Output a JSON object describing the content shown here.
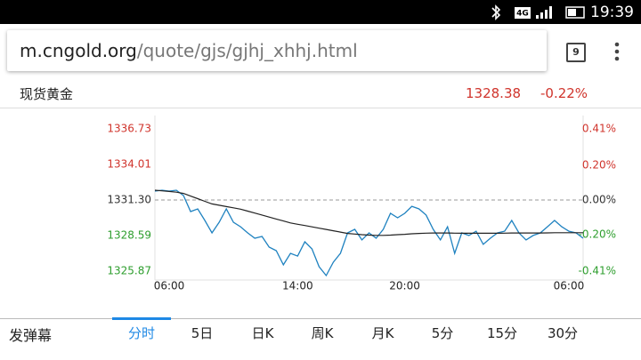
{
  "status_bar": {
    "network": "4G",
    "time": "19:39"
  },
  "browser": {
    "url_domain": "m.cngold.org",
    "url_path": "/quote/gjs/gjhj_xhhj.html",
    "tab_count": "9"
  },
  "quote": {
    "name": "现货黄金",
    "price": "1328.38",
    "change": "-0.22%"
  },
  "chart_data": {
    "type": "line",
    "categories": [
      null,
      null,
      "06:00",
      null,
      null,
      null,
      null,
      null,
      null,
      null,
      null,
      null,
      null,
      null,
      null,
      null,
      null,
      null,
      null,
      null,
      "14:00",
      null,
      null,
      null,
      null,
      null,
      null,
      null,
      null,
      null,
      null,
      null,
      null,
      null,
      null,
      "20:00",
      null,
      null,
      null,
      null,
      null,
      null,
      null,
      null,
      null,
      null,
      null,
      null,
      null,
      null,
      null,
      null,
      null,
      null,
      null,
      null,
      null,
      null,
      "06:00",
      null,
      null
    ],
    "series": [
      {
        "color": "#1f82c0",
        "values": [
          1331.98,
          1332.05,
          1331.98,
          1332.05,
          1331.64,
          1330.42,
          1330.62,
          1329.74,
          1328.79,
          1329.6,
          1330.62,
          1329.6,
          1329.26,
          1328.79,
          1328.38,
          1328.52,
          1327.7,
          1327.43,
          1326.35,
          1327.23,
          1327.02,
          1328.11,
          1327.57,
          1326.21,
          1325.53,
          1326.55,
          1327.23,
          1328.79,
          1329.06,
          1328.25,
          1328.79,
          1328.38,
          1329.06,
          1330.28,
          1329.94,
          1330.28,
          1330.82,
          1330.62,
          1330.15,
          1329.06,
          1328.25,
          1329.26,
          1327.23,
          1328.79,
          1328.59,
          1328.92,
          1327.91,
          1328.38,
          1328.79,
          1328.92,
          1329.74,
          1328.79,
          1328.25,
          1328.59,
          1328.79,
          1329.26,
          1329.74,
          1329.26,
          1328.92,
          1328.79,
          1328.38
        ]
      },
      {
        "color": "#222222",
        "values": [
          1332.05,
          1332.0,
          1331.95,
          1331.9,
          1331.8,
          1331.6,
          1331.4,
          1331.2,
          1331.0,
          1330.9,
          1330.8,
          1330.7,
          1330.6,
          1330.45,
          1330.3,
          1330.15,
          1330.0,
          1329.85,
          1329.7,
          1329.55,
          1329.45,
          1329.35,
          1329.25,
          1329.15,
          1329.05,
          1328.95,
          1328.85,
          1328.75,
          1328.7,
          1328.65,
          1328.62,
          1328.6,
          1328.6,
          1328.62,
          1328.65,
          1328.68,
          1328.72,
          1328.75,
          1328.77,
          1328.78,
          1328.78,
          1328.78,
          1328.77,
          1328.76,
          1328.76,
          1328.76,
          1328.76,
          1328.76,
          1328.76,
          1328.77,
          1328.78,
          1328.78,
          1328.78,
          1328.78,
          1328.78,
          1328.79,
          1328.8,
          1328.8,
          1328.8,
          1328.8,
          1328.8
        ]
      }
    ],
    "ylim": [
      1325.87,
      1336.73
    ],
    "yticks": [
      1336.73,
      1334.01,
      {
        "value": 1331.3,
        "label": "1331.30"
      },
      1328.59,
      1325.87
    ],
    "y2lim": [
      -0.41,
      0.41
    ],
    "y2ticks": [
      {
        "value": 0.41,
        "label": "0.41%"
      },
      {
        "value": 0.2,
        "label": "0.20%"
      },
      {
        "value": 0,
        "label": "0.00%"
      },
      {
        "value": -0.2,
        "label": "-0.20%"
      },
      {
        "value": -0.41,
        "label": "-0.41%"
      }
    ],
    "reference": 1331.3,
    "up_color": "#d0342c",
    "down_color": "#2e9e2e",
    "flat_color": "#333333"
  },
  "tabs": {
    "danmaku": "发弹幕",
    "items": [
      "分时",
      "5日",
      "日K",
      "周K",
      "月K",
      "5分",
      "15分",
      "30分"
    ],
    "active": 0
  }
}
